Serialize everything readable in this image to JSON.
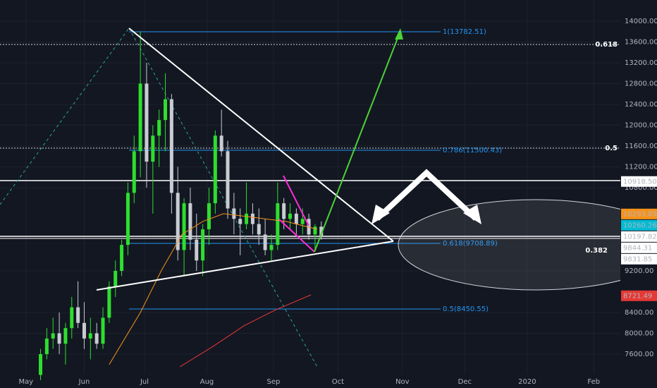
{
  "chart_data": {
    "type": "candlestick",
    "xlim": [
      -12.5,
      285.8
    ],
    "ylim": [
      7220,
      14407
    ],
    "xticks": [
      {
        "value": 0,
        "label": "May"
      },
      {
        "value": 28,
        "label": "Jun"
      },
      {
        "value": 57,
        "label": "Jul"
      },
      {
        "value": 87,
        "label": "Aug"
      },
      {
        "value": 119,
        "label": "Sep"
      },
      {
        "value": 150,
        "label": "Oct"
      },
      {
        "value": 181,
        "label": "Nov"
      },
      {
        "value": 211,
        "label": "Dec"
      },
      {
        "value": 241,
        "label": "2020"
      },
      {
        "value": 273,
        "label": "Feb"
      }
    ],
    "yticks": [
      {
        "value": 7600,
        "label": "7600.00"
      },
      {
        "value": 8000,
        "label": "8000.00"
      },
      {
        "value": 8400,
        "label": "8400.00"
      },
      {
        "value": 9200,
        "label": "9200.00"
      },
      {
        "value": 10800,
        "label": "10800.00"
      },
      {
        "value": 11200,
        "label": "11200.00"
      },
      {
        "value": 11600,
        "label": "11600.00"
      },
      {
        "value": 12000,
        "label": "12000.00"
      },
      {
        "value": 12400,
        "label": "12400.00"
      },
      {
        "value": 12800,
        "label": "12800.00"
      },
      {
        "value": 13200,
        "label": "13200.00"
      },
      {
        "value": 13600,
        "label": "13600.00"
      },
      {
        "value": 14000,
        "label": "14000.00"
      }
    ],
    "grid": true,
    "up_color": "#2ede2e",
    "down_color": "#c8cbd2",
    "x": [
      7,
      10,
      13,
      16,
      19,
      22,
      25,
      28,
      31,
      34,
      37,
      40,
      43,
      46,
      49,
      52,
      55,
      58,
      61,
      64,
      67,
      70,
      73,
      76,
      79,
      82,
      85,
      88,
      91,
      94,
      97,
      100,
      103,
      106,
      109,
      112,
      115,
      118,
      121,
      124,
      127,
      130,
      133,
      136,
      139,
      142
    ],
    "open": [
      7200,
      7600,
      7900,
      8000,
      7800,
      8100,
      8500,
      8200,
      7900,
      8000,
      7800,
      8300,
      8900,
      9200,
      9700,
      10700,
      11500,
      12800,
      11300,
      11800,
      12100,
      12500,
      10700,
      9600,
      10500,
      9800,
      9400,
      10000,
      10500,
      11800,
      11500,
      10400,
      10200,
      10100,
      10300,
      10100,
      9900,
      9600,
      9700,
      10500,
      10200,
      10300,
      10100,
      10200,
      9900,
      10050
    ],
    "high": [
      7700,
      8100,
      8300,
      8400,
      8200,
      8700,
      9000,
      8600,
      8300,
      8200,
      8500,
      9000,
      9400,
      9800,
      10900,
      11800,
      13800,
      13200,
      12000,
      12300,
      13000,
      12600,
      11200,
      10600,
      10800,
      10300,
      10100,
      10800,
      11900,
      12300,
      11700,
      10700,
      10400,
      10900,
      10500,
      10400,
      10200,
      9900,
      10900,
      10600,
      10500,
      10400,
      10400,
      10300,
      10100,
      10150
    ],
    "low": [
      7100,
      7500,
      7700,
      7600,
      7400,
      7900,
      8100,
      7700,
      7500,
      7700,
      7700,
      8200,
      8700,
      9100,
      9500,
      10500,
      11000,
      10800,
      10300,
      11200,
      11500,
      10300,
      9400,
      9100,
      9600,
      9200,
      9100,
      9700,
      10300,
      11400,
      10200,
      9900,
      9500,
      10000,
      9900,
      9700,
      9500,
      9400,
      9600,
      10000,
      10000,
      9900,
      9900,
      9800,
      9600,
      9800
    ],
    "close": [
      7600,
      7900,
      8000,
      7800,
      8100,
      8500,
      8200,
      7900,
      8000,
      7800,
      8300,
      8900,
      9200,
      9700,
      10700,
      11500,
      12800,
      11300,
      11800,
      12100,
      12500,
      10700,
      9600,
      10500,
      9800,
      9400,
      10000,
      10500,
      11800,
      11500,
      10400,
      10200,
      10100,
      10300,
      10100,
      9900,
      9600,
      9700,
      10500,
      10200,
      10300,
      10100,
      10200,
      9900,
      10050,
      9850
    ],
    "lines": [
      {
        "color": "#f7931a",
        "x": [
          40,
          55,
          65,
          75,
          85,
          95,
          105,
          115,
          125,
          140
        ],
        "values": [
          7400,
          8400,
          9200,
          9900,
          10150,
          10300,
          10250,
          10200,
          10150,
          10000
        ]
      },
      {
        "color": "#e53935",
        "x": [
          74,
          90,
          105,
          120,
          137
        ],
        "values": [
          7356,
          7750,
          8150,
          8450,
          8739
        ]
      }
    ],
    "price_labels": [
      {
        "value": 10918.5,
        "label": "10918.50",
        "color": "#ffffff",
        "text_color": "#131722"
      },
      {
        "value": 10293.85,
        "label": "10293.85",
        "color": "#f7931a",
        "text_color": "#ffffff"
      },
      {
        "value": 10260.26,
        "label": "10260.26",
        "color": "#00bcd4",
        "text_color": "#ffffff"
      },
      {
        "value": 10197.82,
        "label": "10197.82",
        "color": "#ffffff",
        "text_color": "#131722"
      },
      {
        "value": 9844.31,
        "label": "9844.31",
        "color": "#ffffff",
        "text_color": "#131722"
      },
      {
        "value": 9831.85,
        "label": "9831.85",
        "color": "#ffffff",
        "text_color": "#131722"
      },
      {
        "value": 8721.49,
        "label": "8721.49",
        "color": "#e53935",
        "text_color": "#ffffff"
      }
    ],
    "annotations": {
      "fib_1": "1(13782.51)",
      "fib_0786": "0.786(11500.43)",
      "fib_0618": "0.618(9708.89)",
      "fib_05": "0.5(8450.55)",
      "level_top": "0.618",
      "level_mid": "0.5",
      "level_low": "0.382"
    }
  }
}
